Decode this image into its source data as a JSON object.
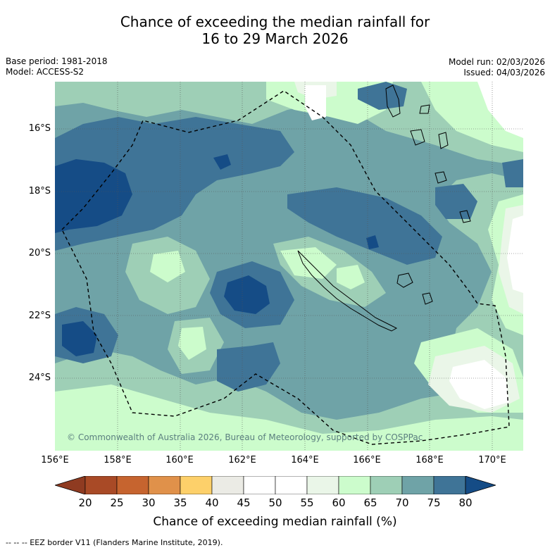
{
  "title": {
    "line1": "Chance of exceeding the median rainfall for",
    "line2": "16 to 29 March 2026"
  },
  "meta": {
    "base_period": "Base period: 1981-2018",
    "model": "Model: ACCESS-S2",
    "model_run": "Model run: 02/03/2026",
    "issued": "Issued: 04/03/2026"
  },
  "map": {
    "latitude_labels": [
      "16°S",
      "18°S",
      "20°S",
      "22°S",
      "24°S"
    ],
    "longitude_labels": [
      "156°E",
      "158°E",
      "160°E",
      "162°E",
      "164°E",
      "166°E",
      "168°E",
      "170°E"
    ],
    "copyright": "© Commonwealth of Australia 2026, Bureau of Meteorology, supported by COSPPac",
    "colors": {
      "c20": "#a94a26",
      "c25": "#c6642f",
      "c30": "#e0914a",
      "c35": "#fdd06a",
      "c40": "#ebebe5",
      "c45": "#ffffff",
      "c50": "#ffffff",
      "c55": "#eaf6e8",
      "c60": "#ccfccc",
      "c65": "#9ecfb6",
      "c70": "#6fa3a7",
      "c75": "#3f7497",
      "c80": "#154c86"
    }
  },
  "colorbar": {
    "ticks": [
      "20",
      "25",
      "30",
      "35",
      "40",
      "45",
      "50",
      "55",
      "60",
      "65",
      "70",
      "75",
      "80"
    ],
    "label": "Chance of exceeding median rainfall (%)"
  },
  "footnote": "--  --  -- EEZ border V11 (Flanders Marine Institute, 2019)."
}
